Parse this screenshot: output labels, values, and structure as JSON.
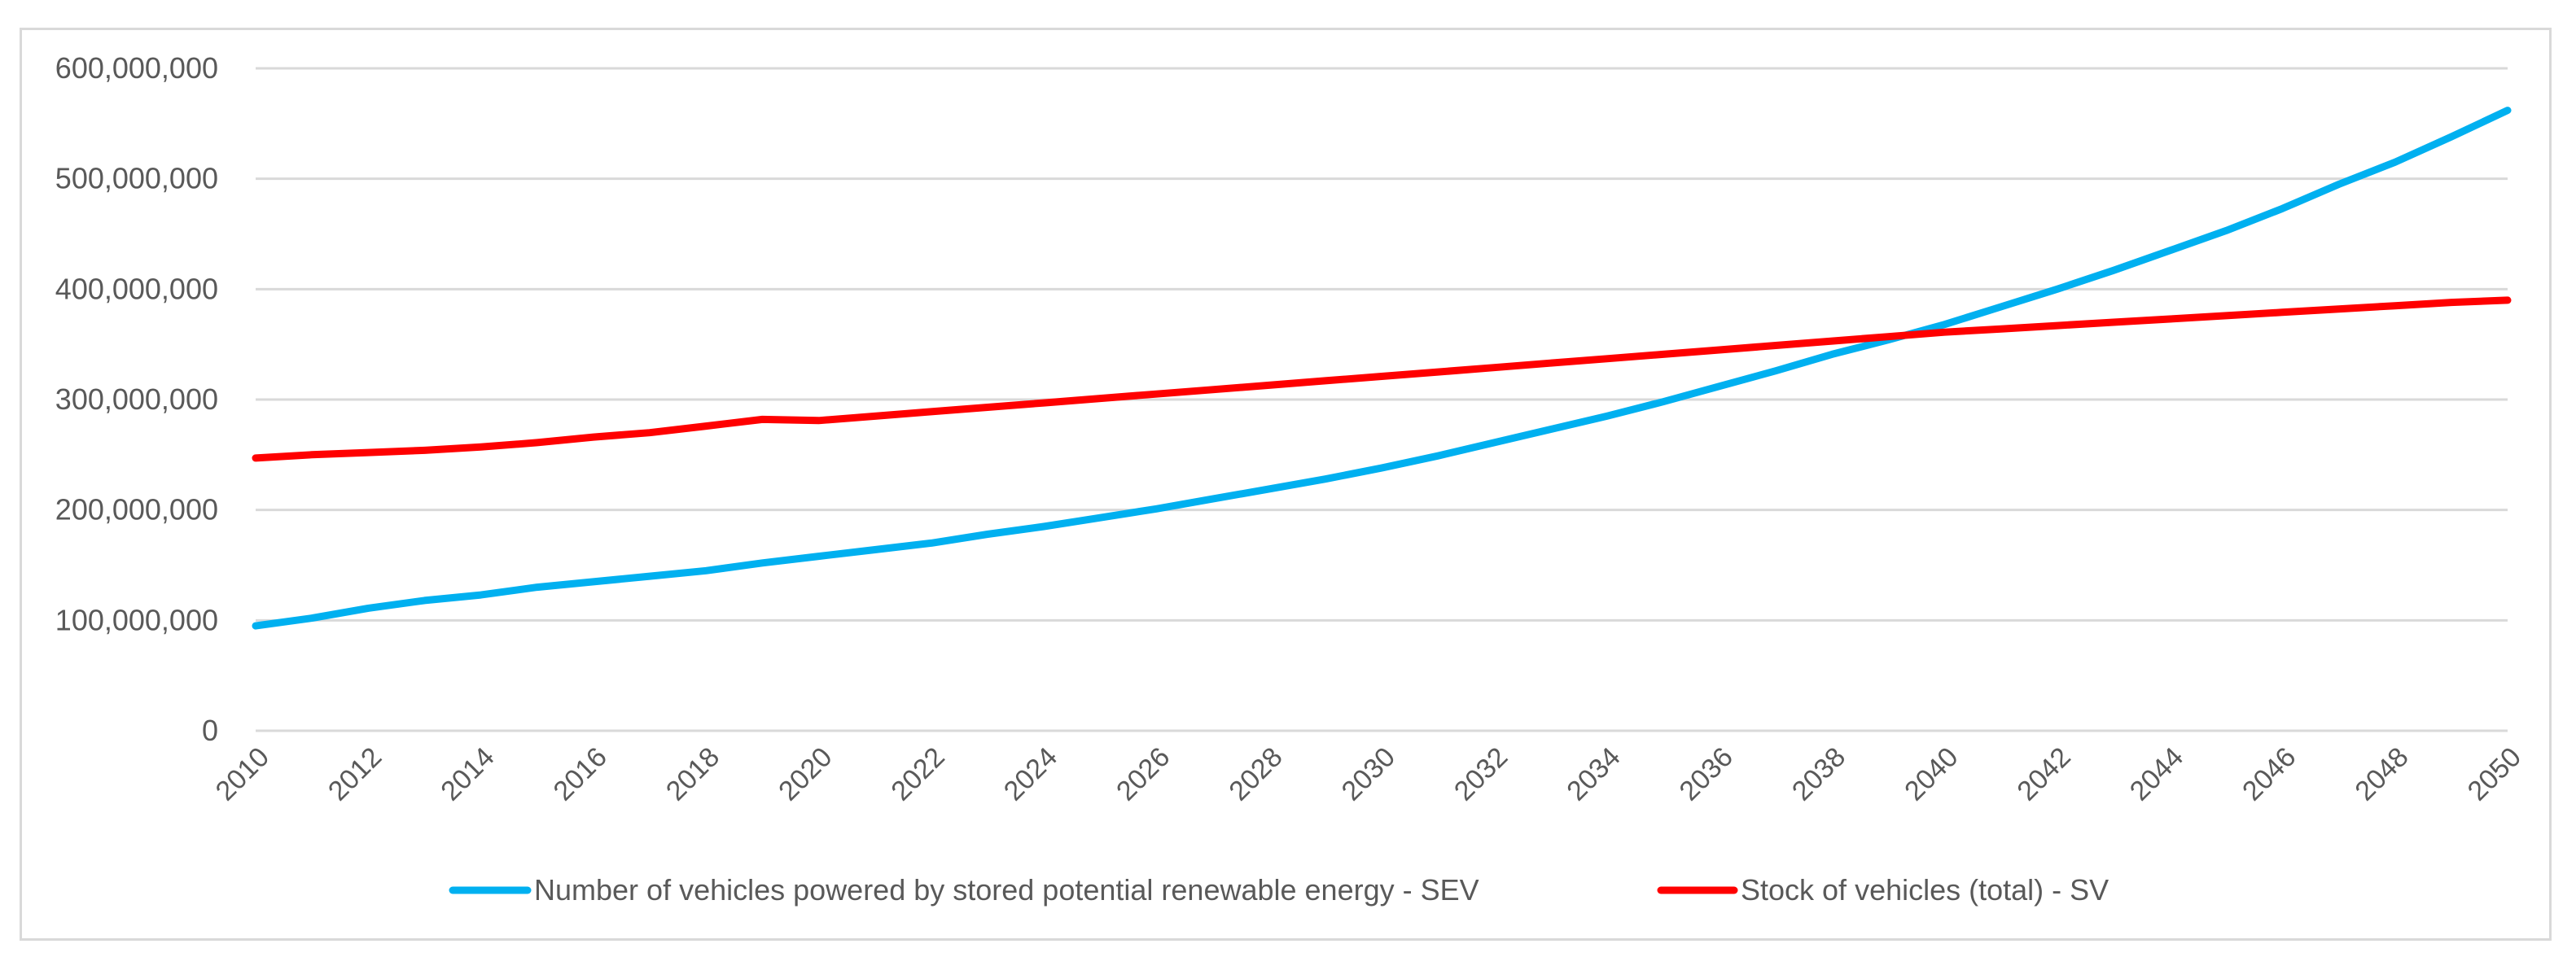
{
  "chart_data": {
    "type": "line",
    "title": "",
    "xlabel": "",
    "ylabel": "",
    "xlim": [
      2010,
      2050
    ],
    "ylim": [
      0,
      600000000
    ],
    "grid": true,
    "legend_position": "bottom",
    "x_tick_labels": [
      "2010",
      "2012",
      "2014",
      "2016",
      "2018",
      "2020",
      "2022",
      "2024",
      "2026",
      "2028",
      "2030",
      "2032",
      "2034",
      "2036",
      "2038",
      "2040",
      "2042",
      "2044",
      "2046",
      "2048",
      "2050"
    ],
    "y_tick_labels": [
      "0",
      "100,000,000",
      "200,000,000",
      "300,000,000",
      "400,000,000",
      "500,000,000",
      "600,000,000"
    ],
    "y_tick_values": [
      0,
      100000000,
      200000000,
      300000000,
      400000000,
      500000000,
      600000000
    ],
    "x": [
      2010,
      2011,
      2012,
      2013,
      2014,
      2015,
      2016,
      2017,
      2018,
      2019,
      2020,
      2021,
      2022,
      2023,
      2024,
      2025,
      2026,
      2027,
      2028,
      2029,
      2030,
      2031,
      2032,
      2033,
      2034,
      2035,
      2036,
      2037,
      2038,
      2039,
      2040,
      2041,
      2042,
      2043,
      2044,
      2045,
      2046,
      2047,
      2048,
      2049,
      2050
    ],
    "series": [
      {
        "name": "Number of vehicles powered by stored potential renewable energy - SEV",
        "color": "#00b0f0",
        "values": [
          95000000,
          102000000,
          111000000,
          118000000,
          123000000,
          130000000,
          135000000,
          140000000,
          145000000,
          152000000,
          158000000,
          164000000,
          170000000,
          178000000,
          185000000,
          193000000,
          201000000,
          210000000,
          219000000,
          228000000,
          238000000,
          249000000,
          261000000,
          273000000,
          285000000,
          298000000,
          312000000,
          326000000,
          341000000,
          354000000,
          368000000,
          384000000,
          400000000,
          417000000,
          435000000,
          453000000,
          473000000,
          495000000,
          515000000,
          538000000,
          562000000
        ]
      },
      {
        "name": "Stock of vehicles (total) - SV",
        "color": "#ff0000",
        "values": [
          247000000,
          250000000,
          252000000,
          254000000,
          257000000,
          261000000,
          266000000,
          270000000,
          276000000,
          282000000,
          281000000,
          285000000,
          289000000,
          293000000,
          297000000,
          301000000,
          305000000,
          309000000,
          313000000,
          317000000,
          321000000,
          325000000,
          329000000,
          333000000,
          337000000,
          341000000,
          345000000,
          349000000,
          353000000,
          357000000,
          361000000,
          364000000,
          367000000,
          370000000,
          373000000,
          376000000,
          379000000,
          382000000,
          385000000,
          388000000,
          390000000
        ]
      }
    ]
  }
}
